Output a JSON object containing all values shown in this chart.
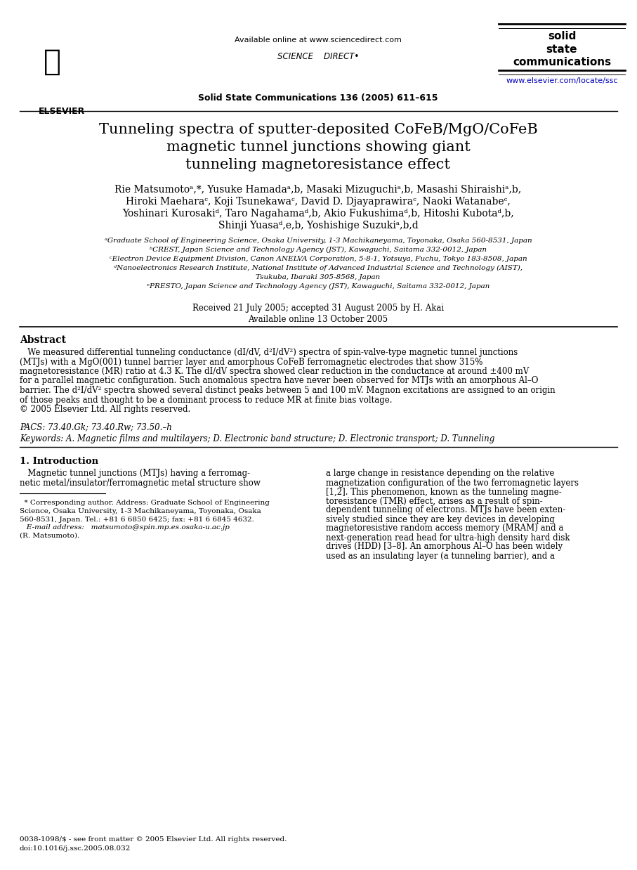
{
  "bg_color": "#ffffff",
  "title_line1": "Tunneling spectra of sputter-deposited CoFeB/MgO/CoFeB",
  "title_line2": "magnetic tunnel junctions showing giant",
  "title_line3": "tunneling magnetoresistance effect",
  "header_available": "Available online at www.sciencedirect.com",
  "journal_citation": "Solid State Communications 136 (2005) 611–615",
  "journal_url": "www.elsevier.com/locate/ssc",
  "authors_line1": "Rie Matsumotoᵃ,*, Yusuke Hamadaᵃ,b, Masaki Mizuguchiᵃ,b, Masashi Shiraishiᵃ,b,",
  "authors_line2": "Hiroki Maeharaᶜ, Koji Tsunekawaᶜ, David D. Djayaprawiraᶜ, Naoki Watanabeᶜ,",
  "authors_line3": "Yoshinari Kurosakiᵈ, Taro Nagahamaᵈ,b, Akio Fukushimaᵈ,b, Hitoshi Kubotaᵈ,b,",
  "authors_line4": "Shinji Yuasaᵈ,e,b, Yoshishige Suzukiᵃ,b,d",
  "aff_a": "ᵃGraduate School of Engineering Science, Osaka University, 1-3 Machikaneyama, Toyonaka, Osaka 560-8531, Japan",
  "aff_b": "ᵇCREST, Japan Science and Technology Agency (JST), Kawaguchi, Saitama 332-0012, Japan",
  "aff_c": "ᶜElectron Device Equipment Division, Canon ANELVA Corporation, 5-8-1, Yotsuya, Fuchu, Tokyo 183-8508, Japan",
  "aff_d1": "ᵈNanoelectronics Research Institute, National Institute of Advanced Industrial Science and Technology (AIST),",
  "aff_d2": "Tsukuba, Ibaraki 305-8568, Japan",
  "aff_e": "ᵉPRESTO, Japan Science and Technology Agency (JST), Kawaguchi, Saitama 332-0012, Japan",
  "received": "Received 21 July 2005; accepted 31 August 2005 by H. Akai",
  "available": "Available online 13 October 2005",
  "abstract_title": "Abstract",
  "abstract_body": [
    "   We measured differential tunneling conductance (dI/dV, d²I/dV²) spectra of spin-valve-type magnetic tunnel junctions",
    "(MTJs) with a MgO(001) tunnel barrier layer and amorphous CoFeB ferromagnetic electrodes that show 315%",
    "magnetoresistance (MR) ratio at 4.3 K. The dI/dV spectra showed clear reduction in the conductance at around ±400 mV",
    "for a parallel magnetic configuration. Such anomalous spectra have never been observed for MTJs with an amorphous Al–O",
    "barrier. The d²I/dV² spectra showed several distinct peaks between 5 and 100 mV. Magnon excitations are assigned to an origin",
    "of those peaks and thought to be a dominant process to reduce MR at finite bias voltage.",
    "© 2005 Elsevier Ltd. All rights reserved."
  ],
  "pacs": "PACS: 73.40.Gk; 73.40.Rw; 73.50.–h",
  "keywords": "Keywords: A. Magnetic films and multilayers; D. Electronic band structure; D. Electronic transport; D. Tunneling",
  "section1_title": "1. Introduction",
  "intro_col1": [
    "   Magnetic tunnel junctions (MTJs) having a ferromag-",
    "netic metal/insulator/ferromagnetic metal structure show"
  ],
  "intro_col2": [
    "a large change in resistance depending on the relative",
    "magnetization configuration of the two ferromagnetic layers",
    "[1,2]. This phenomenon, known as the tunneling magne-",
    "toresistance (TMR) effect, arises as a result of spin-",
    "dependent tunneling of electrons. MTJs have been exten-",
    "sively studied since they are key devices in developing",
    "magnetoresistive random access memory (MRAM) and a",
    "next-generation read head for ultra-high density hard disk",
    "drives (HDD) [3–8]. An amorphous Al–O has been widely",
    "used as an insulating layer (a tunneling barrier), and a"
  ],
  "footnote_lines": [
    "  * Corresponding author. Address: Graduate School of Engineering",
    "Science, Osaka University, 1-3 Machikaneyama, Toyonaka, Osaka",
    "560-8531, Japan. Tel.: +81 6 6850 6425; fax: +81 6 6845 4632.",
    "   E-mail address:   matsumoto@spin.mp.es.osaka-u.ac.jp",
    "(R. Matsumoto)."
  ],
  "footer_line1": "0038-1098/$ - see front matter © 2005 Elsevier Ltd. All rights reserved.",
  "footer_line2": "doi:10.1016/j.ssc.2005.08.032"
}
